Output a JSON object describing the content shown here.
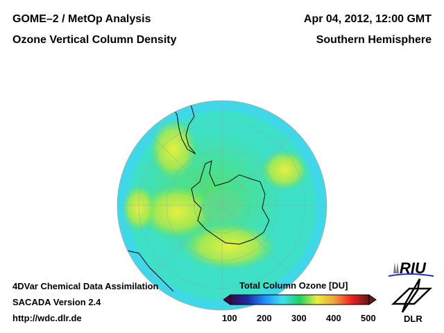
{
  "header": {
    "title_line1": "GOME–2 / MetOp Analysis",
    "title_line2": "Ozone Vertical Column Density",
    "date": "Apr 04, 2012, 12:00 GMT",
    "region": "Southern Hemisphere"
  },
  "footer": {
    "line1": "4DVar Chemical Data Assimilation",
    "line2": "SACADA Version 2.4",
    "url": "http://wdc.dlr.de"
  },
  "colorbar": {
    "title": "Total Column Ozone [DU]",
    "ticks": [
      "100",
      "200",
      "300",
      "400",
      "500"
    ],
    "range": [
      100,
      500
    ],
    "colors": [
      "#3a0a4a",
      "#1a2aa0",
      "#1e90ff",
      "#40e0f0",
      "#20d060",
      "#e8f040",
      "#f0a040",
      "#f02020",
      "#601818"
    ]
  },
  "logos": {
    "riu": "RIU",
    "dlr": "DLR"
  }
}
